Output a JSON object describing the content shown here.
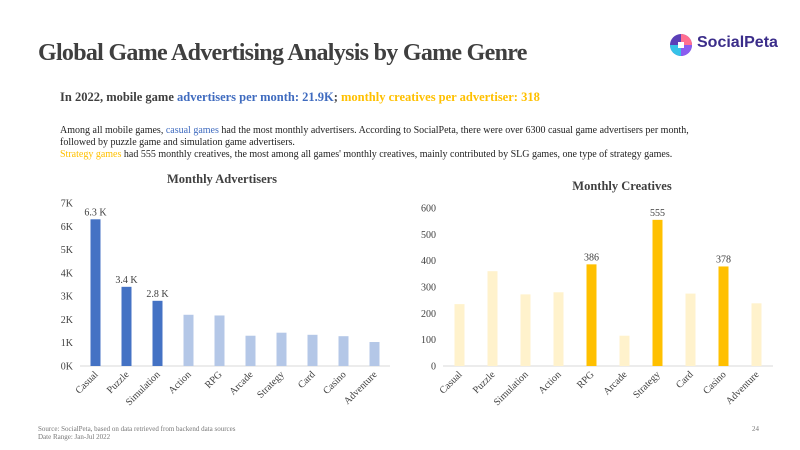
{
  "title": "Global Game Advertising Analysis by Game Genre",
  "logo": {
    "text": "SocialPeta"
  },
  "headline": {
    "prefix": "In 2022, mobile game ",
    "advertisers": "advertisers per month: 21.9K",
    "separator": "; ",
    "creatives": "monthly creatives per advertiser: 318"
  },
  "paragraph1": {
    "before": "Among all mobile games, ",
    "highlight": "casual games",
    "after": " had the most monthly advertisers. According to SocialPeta, there were over 6300 casual game advertisers per month, followed by puzzle game and simulation game advertisers."
  },
  "paragraph2": {
    "highlight": "Strategy games",
    "after": " had 555 monthly creatives, the most among all games' monthly creatives, mainly contributed by SLG games, one type of strategy games."
  },
  "colors": {
    "blue": "#4472c4",
    "lightblue": "#b4c7e7",
    "gold": "#ffc000",
    "lightgold": "#fff2cc"
  },
  "chart_data": [
    {
      "type": "bar",
      "title": "Monthly Advertisers",
      "categories": [
        "Casual",
        "Puzzle",
        "Simulation",
        "Action",
        "RPG",
        "Arcade",
        "Strategy",
        "Card",
        "Casino",
        "Adventure"
      ],
      "values": [
        6300,
        3400,
        2800,
        2200,
        2170,
        1300,
        1430,
        1340,
        1280,
        1030
      ],
      "highlight": [
        true,
        true,
        true,
        false,
        false,
        false,
        false,
        false,
        false,
        false
      ],
      "data_labels": [
        "6.3 K",
        "3.4 K",
        "2.8 K",
        "",
        "",
        "",
        "",
        "",
        "",
        ""
      ],
      "ylim": [
        0,
        7000
      ],
      "yticks": [
        "0K",
        "1K",
        "2K",
        "3K",
        "4K",
        "5K",
        "6K",
        "7K"
      ],
      "grid": false
    },
    {
      "type": "bar",
      "title": "Monthly Creatives",
      "categories": [
        "Casual",
        "Puzzle",
        "Simulation",
        "Action",
        "RPG",
        "Arcade",
        "Strategy",
        "Card",
        "Casino",
        "Adventure"
      ],
      "values": [
        235,
        360,
        272,
        280,
        386,
        115,
        555,
        275,
        378,
        238
      ],
      "highlight": [
        false,
        false,
        false,
        false,
        true,
        false,
        true,
        false,
        true,
        false
      ],
      "data_labels": [
        "",
        "",
        "",
        "",
        "386",
        "",
        "555",
        "",
        "378",
        ""
      ],
      "ylim": [
        0,
        600
      ],
      "yticks": [
        "0",
        "100",
        "200",
        "300",
        "400",
        "500",
        "600"
      ],
      "grid": false
    }
  ],
  "footer": {
    "source": "Source: SocialPeta, based on data retrieved from backend data sources",
    "date_range": "Date Range: Jan-Jul 2022",
    "page": "24"
  }
}
